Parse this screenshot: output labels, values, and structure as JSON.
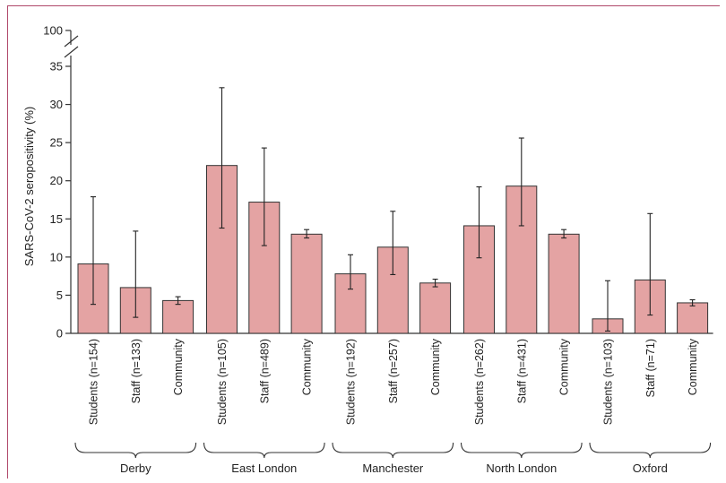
{
  "chart_data": {
    "type": "bar",
    "ylabel": "SARS-CoV-2 seropositivity (%)",
    "ylim": [
      0,
      35
    ],
    "yticks": [
      "0",
      "5",
      "10",
      "15",
      "20",
      "25",
      "30",
      "35"
    ],
    "ybreak_label": "100",
    "colors": {
      "bar": "#e4a3a3",
      "edge": "#333333"
    },
    "groups": [
      {
        "name": "Derby",
        "bars": [
          {
            "label": "Students (n=154)",
            "value": 9.1,
            "err": [
              3.8,
              17.9
            ]
          },
          {
            "label": "Staff (n=133)",
            "value": 6.0,
            "err": [
              2.1,
              13.4
            ]
          },
          {
            "label": "Community",
            "value": 4.3,
            "err": [
              3.8,
              4.8
            ]
          }
        ]
      },
      {
        "name": "East London",
        "bars": [
          {
            "label": "Students (n=105)",
            "value": 22.0,
            "err": [
              13.8,
              32.2
            ]
          },
          {
            "label": "Staff (n=489)",
            "value": 17.2,
            "err": [
              11.5,
              24.3
            ]
          },
          {
            "label": "Community",
            "value": 13.0,
            "err": [
              12.5,
              13.6
            ]
          }
        ]
      },
      {
        "name": "Manchester",
        "bars": [
          {
            "label": "Students (n=192)",
            "value": 7.8,
            "err": [
              5.8,
              10.3
            ]
          },
          {
            "label": "Staff (n=257)",
            "value": 11.3,
            "err": [
              7.7,
              16.0
            ]
          },
          {
            "label": "Community",
            "value": 6.6,
            "err": [
              6.1,
              7.1
            ]
          }
        ]
      },
      {
        "name": "North London",
        "bars": [
          {
            "label": "Students (n=262)",
            "value": 14.1,
            "err": [
              9.9,
              19.2
            ]
          },
          {
            "label": "Staff (n=431)",
            "value": 19.3,
            "err": [
              14.1,
              25.6
            ]
          },
          {
            "label": "Community",
            "value": 13.0,
            "err": [
              12.5,
              13.6
            ]
          }
        ]
      },
      {
        "name": "Oxford",
        "bars": [
          {
            "label": "Students (n=103)",
            "value": 1.9,
            "err": [
              0.3,
              6.9
            ]
          },
          {
            "label": "Staff (n=71)",
            "value": 7.0,
            "err": [
              2.4,
              15.7
            ]
          },
          {
            "label": "Community",
            "value": 4.0,
            "err": [
              3.6,
              4.4
            ]
          }
        ]
      }
    ]
  }
}
